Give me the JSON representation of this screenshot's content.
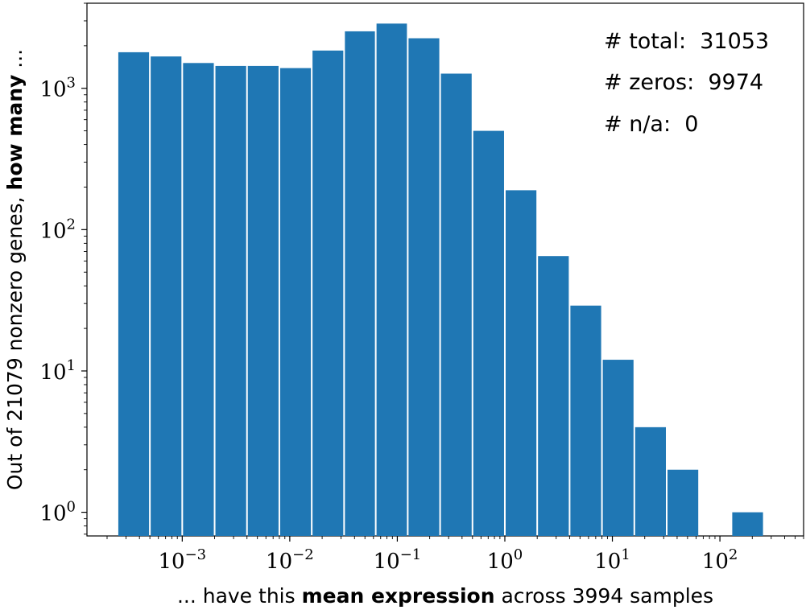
{
  "chart_data": {
    "type": "bar",
    "x_scale": "log",
    "y_scale": "log",
    "xlim": [
      0.00013,
      600
    ],
    "ylim": [
      0.68,
      4000
    ],
    "bar_color": "#1f77b4",
    "bin_edges": [
      0.00025,
      0.0005,
      0.001,
      0.002,
      0.004,
      0.008,
      0.016,
      0.032,
      0.063,
      0.125,
      0.25,
      0.5,
      1.0,
      2.0,
      4.0,
      8.0,
      16.0,
      32.0,
      64.0,
      128.0,
      256.0
    ],
    "values": [
      1800,
      1680,
      1510,
      1440,
      1440,
      1390,
      1850,
      2530,
      2870,
      2260,
      1270,
      500,
      190,
      65,
      29,
      12,
      4,
      2,
      0,
      1
    ],
    "x_ticks": [
      {
        "value": 0.001,
        "base": "10",
        "exp": "−3"
      },
      {
        "value": 0.01,
        "base": "10",
        "exp": "−2"
      },
      {
        "value": 0.1,
        "base": "10",
        "exp": "−1"
      },
      {
        "value": 1,
        "base": "10",
        "exp": "0"
      },
      {
        "value": 10,
        "base": "10",
        "exp": "1"
      },
      {
        "value": 100,
        "base": "10",
        "exp": "2"
      }
    ],
    "y_ticks": [
      {
        "value": 1,
        "base": "10",
        "exp": "0"
      },
      {
        "value": 10,
        "base": "10",
        "exp": "1"
      },
      {
        "value": 100,
        "base": "10",
        "exp": "2"
      },
      {
        "value": 1000,
        "base": "10",
        "exp": "3"
      }
    ],
    "xlabel": {
      "prefix": "... have this ",
      "bold": "mean expression",
      "suffix": " across 3994 samples"
    },
    "ylabel": {
      "prefix": "Out of 21079 nonzero genes, ",
      "bold": "how many",
      "suffix": " ..."
    },
    "annotations": [
      "# total:  31053",
      "# zeros:  9974",
      "# n/a:  0"
    ]
  }
}
